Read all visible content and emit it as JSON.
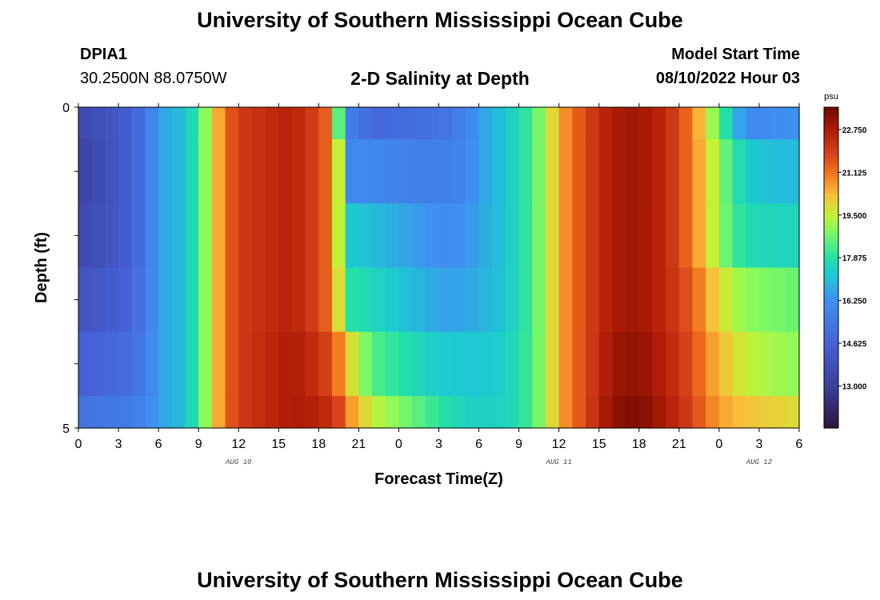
{
  "page": {
    "title": "University of Southern Mississippi Ocean Cube",
    "station_id": "DPIA1",
    "station_coords": "30.2500N  88.0750W",
    "plot_title": "2-D Salinity at Depth",
    "start_label": "Model Start Time",
    "start_value": "08/10/2022 Hour 03",
    "footer_title": "University of Southern Mississippi Ocean Cube"
  },
  "chart_data": {
    "type": "heatmap",
    "variable": "salinity",
    "xlabel": "Forecast Time(Z)",
    "ylabel": "Depth (ft)",
    "x_tick_labels": [
      "0",
      "3",
      "6",
      "9",
      "12",
      "15",
      "18",
      "21",
      "0",
      "3",
      "6",
      "9",
      "12",
      "15",
      "18",
      "21",
      "0",
      "3",
      "6"
    ],
    "x_range_hours": [
      0,
      54
    ],
    "date_labels": [
      {
        "label": "AUG 10",
        "hour": 12
      },
      {
        "label": "AUG 11",
        "hour": 36
      },
      {
        "label": "AUG 12",
        "hour": 51
      }
    ],
    "y_tick_labels": [
      "0",
      "5"
    ],
    "y_range_ft": [
      0,
      5
    ],
    "colorbar": {
      "unit": "psu",
      "min": 11.4,
      "max": 23.6,
      "tick_labels": [
        "22.750",
        "21.125",
        "19.500",
        "17.875",
        "16.250",
        "14.625",
        "13.000"
      ],
      "tick_values": [
        22.75,
        21.125,
        19.5,
        17.875,
        16.25,
        14.625,
        13.0
      ]
    },
    "depth_layers_ft": [
      0.25,
      1.25,
      2.25,
      3.25,
      4.25,
      4.75
    ],
    "salinity_profiles": [
      {
        "depth_ft": 0.25,
        "hours": [
          0,
          2,
          4,
          5,
          6,
          8,
          9,
          10,
          11,
          12,
          16,
          18,
          19,
          19.5,
          20,
          22,
          27,
          29,
          30,
          32,
          34,
          35,
          36,
          38,
          40,
          42,
          44,
          46,
          48,
          50,
          52,
          54
        ],
        "psu": [
          13.5,
          13.9,
          14.6,
          15.4,
          16.5,
          17.1,
          18.2,
          19.8,
          21.2,
          22.0,
          22.6,
          21.8,
          21.0,
          18.5,
          15.8,
          14.9,
          15.2,
          15.8,
          16.5,
          17.2,
          18.3,
          19.3,
          20.5,
          21.8,
          22.8,
          23.0,
          22.4,
          21.0,
          18.5,
          16.0,
          16.2,
          16.3
        ]
      },
      {
        "depth_ft": 1.25,
        "hours": [
          0,
          2,
          4,
          5,
          6,
          8,
          9,
          10,
          11,
          12,
          16,
          18,
          19,
          19.5,
          20,
          22,
          27,
          29,
          30,
          32,
          34,
          35,
          36,
          38,
          40,
          42,
          44,
          46,
          48,
          50,
          52,
          54
        ],
        "psu": [
          13.2,
          13.8,
          14.6,
          15.4,
          16.5,
          17.1,
          18.2,
          19.8,
          21.2,
          22.0,
          22.6,
          21.8,
          21.0,
          19.5,
          16.0,
          16.0,
          15.6,
          16.0,
          16.5,
          17.2,
          18.3,
          19.3,
          20.5,
          21.8,
          22.8,
          23.0,
          22.4,
          21.0,
          19.0,
          17.3,
          17.0,
          17.0
        ]
      },
      {
        "depth_ft": 2.25,
        "hours": [
          0,
          2,
          4,
          5,
          6,
          8,
          9,
          10,
          11,
          12,
          16,
          18,
          19,
          19.5,
          20,
          22,
          27,
          29,
          30,
          32,
          34,
          35,
          36,
          38,
          40,
          42,
          44,
          46,
          48,
          50,
          52,
          54
        ],
        "psu": [
          13.5,
          13.9,
          14.6,
          15.4,
          16.5,
          17.1,
          18.2,
          19.8,
          21.2,
          22.0,
          22.6,
          21.8,
          21.0,
          19.5,
          17.3,
          17.0,
          16.2,
          16.3,
          16.6,
          17.2,
          18.3,
          19.3,
          20.5,
          21.8,
          22.8,
          23.0,
          22.4,
          21.0,
          19.0,
          17.7,
          17.6,
          17.6
        ]
      },
      {
        "depth_ft": 3.25,
        "hours": [
          0,
          2,
          4,
          5,
          6,
          8,
          9,
          10,
          11,
          12,
          16,
          18,
          19,
          19.5,
          20,
          22,
          27,
          29,
          30,
          32,
          34,
          35,
          36,
          38,
          40,
          42,
          44,
          46,
          48,
          50,
          52,
          54
        ],
        "psu": [
          14.0,
          14.2,
          14.8,
          15.5,
          16.5,
          17.1,
          18.2,
          19.8,
          21.2,
          22.0,
          22.6,
          21.8,
          21.0,
          19.8,
          18.0,
          17.6,
          16.6,
          16.6,
          16.8,
          17.2,
          18.3,
          19.3,
          20.5,
          21.8,
          22.8,
          23.0,
          22.4,
          21.4,
          19.8,
          19.0,
          18.8,
          18.6
        ]
      },
      {
        "depth_ft": 4.25,
        "hours": [
          0,
          2,
          4,
          5,
          6,
          8,
          9,
          10,
          11,
          12,
          16,
          18,
          19,
          19.5,
          20,
          22,
          27,
          29,
          30,
          32,
          34,
          35,
          36,
          38,
          40,
          42,
          44,
          46,
          48,
          50,
          52,
          54
        ],
        "psu": [
          14.6,
          14.8,
          15.1,
          15.6,
          16.5,
          17.1,
          18.2,
          19.8,
          21.2,
          22.0,
          22.8,
          22.2,
          21.6,
          21.0,
          20.2,
          18.4,
          17.3,
          17.2,
          17.2,
          17.4,
          18.3,
          19.3,
          20.5,
          21.8,
          23.0,
          23.2,
          22.6,
          21.6,
          20.3,
          19.5,
          19.2,
          19.0
        ]
      },
      {
        "depth_ft": 4.75,
        "hours": [
          0,
          2,
          4,
          5,
          6,
          8,
          9,
          10,
          11,
          12,
          16,
          18,
          19,
          19.5,
          20,
          22,
          27,
          29,
          30,
          32,
          34,
          35,
          36,
          38,
          40,
          42,
          44,
          46,
          48,
          50,
          52,
          54
        ],
        "psu": [
          15.2,
          15.4,
          15.6,
          15.9,
          16.5,
          17.1,
          18.2,
          19.8,
          21.2,
          22.0,
          22.8,
          22.6,
          22.2,
          21.8,
          21.0,
          19.5,
          18.0,
          17.5,
          17.4,
          17.5,
          18.3,
          19.3,
          20.5,
          21.8,
          23.2,
          23.4,
          22.8,
          21.8,
          20.6,
          20.2,
          20.0,
          19.8
        ]
      }
    ],
    "colormap_stops": [
      {
        "value": 11.4,
        "color": "#30123b"
      },
      {
        "value": 13.0,
        "color": "#3a3f9c"
      },
      {
        "value": 14.6,
        "color": "#4660d6"
      },
      {
        "value": 16.25,
        "color": "#3f8ff2"
      },
      {
        "value": 17.2,
        "color": "#1ec8d4"
      },
      {
        "value": 17.875,
        "color": "#22e0a8"
      },
      {
        "value": 19.0,
        "color": "#8cfb5a"
      },
      {
        "value": 19.5,
        "color": "#c4f135"
      },
      {
        "value": 20.3,
        "color": "#fbbc3a"
      },
      {
        "value": 21.125,
        "color": "#f2731d"
      },
      {
        "value": 21.8,
        "color": "#d8431a"
      },
      {
        "value": 22.75,
        "color": "#b01c06"
      },
      {
        "value": 23.6,
        "color": "#6f0a02"
      }
    ],
    "grid": false
  }
}
